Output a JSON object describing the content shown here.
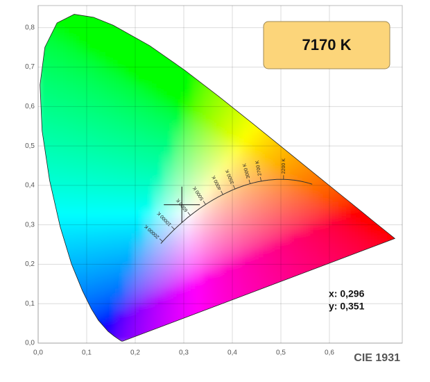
{
  "chart_data": {
    "type": "scatter",
    "x": [
      0.296
    ],
    "values": [
      0.351
    ],
    "point_labels": {
      "x": "x: 0,296",
      "y": "y: 0,351"
    },
    "cct_label": "7170 K",
    "footer": "CIE 1931",
    "xlim": [
      0,
      0.75
    ],
    "ylim": [
      0,
      0.856
    ],
    "xticks": [
      {
        "value": 0,
        "label": "0,0"
      },
      {
        "value": 0.1,
        "label": "0,1"
      },
      {
        "value": 0.2,
        "label": "0,2"
      },
      {
        "value": 0.3,
        "label": "0,3"
      },
      {
        "value": 0.4,
        "label": "0,4"
      },
      {
        "value": 0.5,
        "label": "0,5"
      },
      {
        "value": 0.6,
        "label": "0,6"
      }
    ],
    "yticks": [
      {
        "value": 0,
        "label": "0,0"
      },
      {
        "value": 0.1,
        "label": "0,1"
      },
      {
        "value": 0.2,
        "label": "0,2"
      },
      {
        "value": 0.3,
        "label": "0,3"
      },
      {
        "value": 0.4,
        "label": "0,4"
      },
      {
        "value": 0.5,
        "label": "0,5"
      },
      {
        "value": 0.6,
        "label": "0,6"
      },
      {
        "value": 0.7,
        "label": "0,7"
      },
      {
        "value": 0.8,
        "label": "0,8"
      }
    ],
    "cct_ticks": [
      {
        "value": 2200,
        "label": "2200 K"
      },
      {
        "value": 2700,
        "label": "2700 K"
      },
      {
        "value": 3000,
        "label": "3000 K"
      },
      {
        "value": 3500,
        "label": "3500 K"
      },
      {
        "value": 4000,
        "label": "4000 K"
      },
      {
        "value": 5000,
        "label": "5000 K"
      },
      {
        "value": 6500,
        "label": "6500 K"
      },
      {
        "value": 10000,
        "label": "10000 K"
      },
      {
        "value": 20000,
        "label": "20000 K"
      }
    ],
    "grid": true
  }
}
